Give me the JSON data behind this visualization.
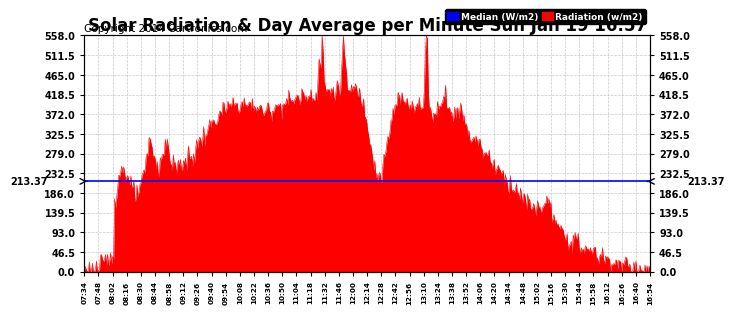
{
  "title": "Solar Radiation & Day Average per Minute Sun Jan 19 16:57",
  "copyright": "Copyright 2014 Cartronics.com",
  "median_value": 213.37,
  "yticks": [
    0.0,
    46.5,
    93.0,
    139.5,
    186.0,
    232.5,
    279.0,
    325.5,
    372.0,
    418.5,
    465.0,
    511.5,
    558.0
  ],
  "ylim": [
    0,
    558.0
  ],
  "xtick_labels": [
    "07:34",
    "07:48",
    "08:02",
    "08:16",
    "08:30",
    "08:44",
    "08:58",
    "09:12",
    "09:26",
    "09:40",
    "09:54",
    "10:08",
    "10:22",
    "10:36",
    "10:50",
    "11:04",
    "11:18",
    "11:32",
    "11:46",
    "12:00",
    "12:14",
    "12:28",
    "12:42",
    "12:56",
    "13:10",
    "13:24",
    "13:38",
    "13:52",
    "14:06",
    "14:20",
    "14:34",
    "14:48",
    "15:02",
    "15:16",
    "15:30",
    "15:44",
    "15:58",
    "16:12",
    "16:26",
    "16:40",
    "16:54"
  ],
  "bar_color": "#FF0000",
  "median_line_color": "#0000FF",
  "background_color": "#FFFFFF",
  "grid_color": "#BBBBBB",
  "title_fontsize": 12,
  "copyright_fontsize": 7.5,
  "legend_median_color": "#0000FF",
  "legend_radiation_color": "#FF0000"
}
